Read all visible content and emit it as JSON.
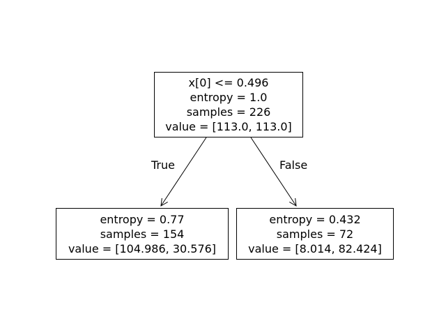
{
  "tree": {
    "root": {
      "split": "x[0] <= 0.496",
      "entropy": "entropy = 1.0",
      "samples": "samples = 226",
      "value": "value = [113.0, 113.0]"
    },
    "left": {
      "entropy": "entropy = 0.77",
      "samples": "samples = 154",
      "value": "value = [104.986, 30.576]"
    },
    "right": {
      "entropy": "entropy = 0.432",
      "samples": "samples = 72",
      "value": "value = [8.014, 82.424]"
    },
    "edges": {
      "true_label": "True",
      "false_label": "False"
    }
  }
}
